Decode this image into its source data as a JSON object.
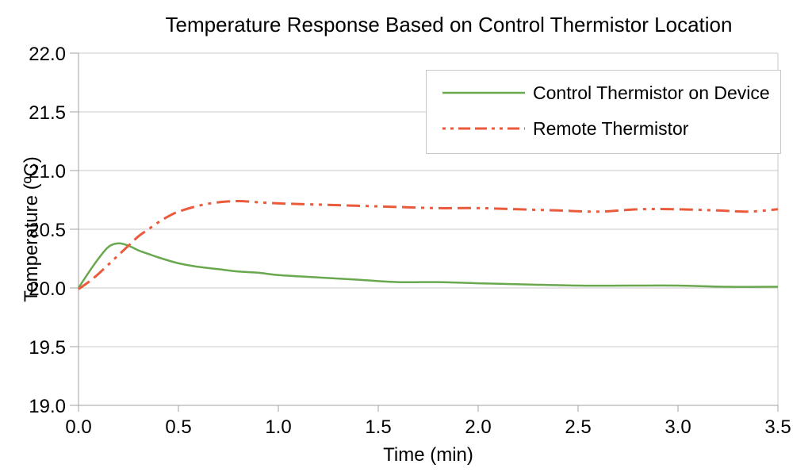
{
  "chart_data": {
    "type": "line",
    "title": "Temperature Response Based on Control Thermistor Location",
    "xlabel": "Time (min)",
    "ylabel": "Temperature (ºC)",
    "xlim": [
      0.0,
      3.5
    ],
    "ylim": [
      19.0,
      22.0
    ],
    "x_ticks": [
      "0.0",
      "0.5",
      "1.0",
      "1.5",
      "2.0",
      "2.5",
      "3.0",
      "3.5"
    ],
    "y_ticks": [
      "19.0",
      "19.5",
      "20.0",
      "20.5",
      "21.0",
      "21.5",
      "22.0"
    ],
    "grid": "horizontal-only",
    "legend_position": "inside-top-right",
    "series": [
      {
        "name": "Control Thermistor on Device",
        "color": "#6aa84f",
        "style": "solid",
        "points": [
          [
            0.0,
            20.0
          ],
          [
            0.05,
            20.13
          ],
          [
            0.1,
            20.25
          ],
          [
            0.15,
            20.35
          ],
          [
            0.2,
            20.38
          ],
          [
            0.25,
            20.36
          ],
          [
            0.3,
            20.32
          ],
          [
            0.35,
            20.29
          ],
          [
            0.4,
            20.26
          ],
          [
            0.5,
            20.21
          ],
          [
            0.6,
            20.18
          ],
          [
            0.7,
            20.16
          ],
          [
            0.8,
            20.14
          ],
          [
            0.9,
            20.13
          ],
          [
            1.0,
            20.11
          ],
          [
            1.2,
            20.09
          ],
          [
            1.4,
            20.07
          ],
          [
            1.6,
            20.05
          ],
          [
            1.8,
            20.05
          ],
          [
            2.0,
            20.04
          ],
          [
            2.25,
            20.03
          ],
          [
            2.5,
            20.02
          ],
          [
            2.75,
            20.02
          ],
          [
            3.0,
            20.02
          ],
          [
            3.25,
            20.01
          ],
          [
            3.5,
            20.01
          ]
        ]
      },
      {
        "name": "Remote Thermistor",
        "color": "#eb5a3b",
        "style": "dash-dash-dot-dot",
        "points": [
          [
            0.0,
            19.99
          ],
          [
            0.05,
            20.05
          ],
          [
            0.1,
            20.12
          ],
          [
            0.15,
            20.2
          ],
          [
            0.2,
            20.28
          ],
          [
            0.25,
            20.36
          ],
          [
            0.3,
            20.44
          ],
          [
            0.35,
            20.5
          ],
          [
            0.4,
            20.56
          ],
          [
            0.45,
            20.61
          ],
          [
            0.5,
            20.65
          ],
          [
            0.6,
            20.7
          ],
          [
            0.7,
            20.73
          ],
          [
            0.8,
            20.74
          ],
          [
            0.9,
            20.73
          ],
          [
            1.0,
            20.72
          ],
          [
            1.2,
            20.71
          ],
          [
            1.4,
            20.7
          ],
          [
            1.6,
            20.69
          ],
          [
            1.8,
            20.68
          ],
          [
            2.0,
            20.68
          ],
          [
            2.2,
            20.67
          ],
          [
            2.4,
            20.66
          ],
          [
            2.6,
            20.65
          ],
          [
            2.8,
            20.67
          ],
          [
            3.0,
            20.67
          ],
          [
            3.2,
            20.66
          ],
          [
            3.35,
            20.65
          ],
          [
            3.5,
            20.67
          ]
        ]
      }
    ]
  },
  "colors": {
    "background": "#ffffff",
    "gridline": "#c8c8c8",
    "axis": "#a0a0a0",
    "text": "#000000",
    "legend_border": "#c8c8c8",
    "series_control": "#6aa84f",
    "series_remote": "#eb5a3b"
  }
}
